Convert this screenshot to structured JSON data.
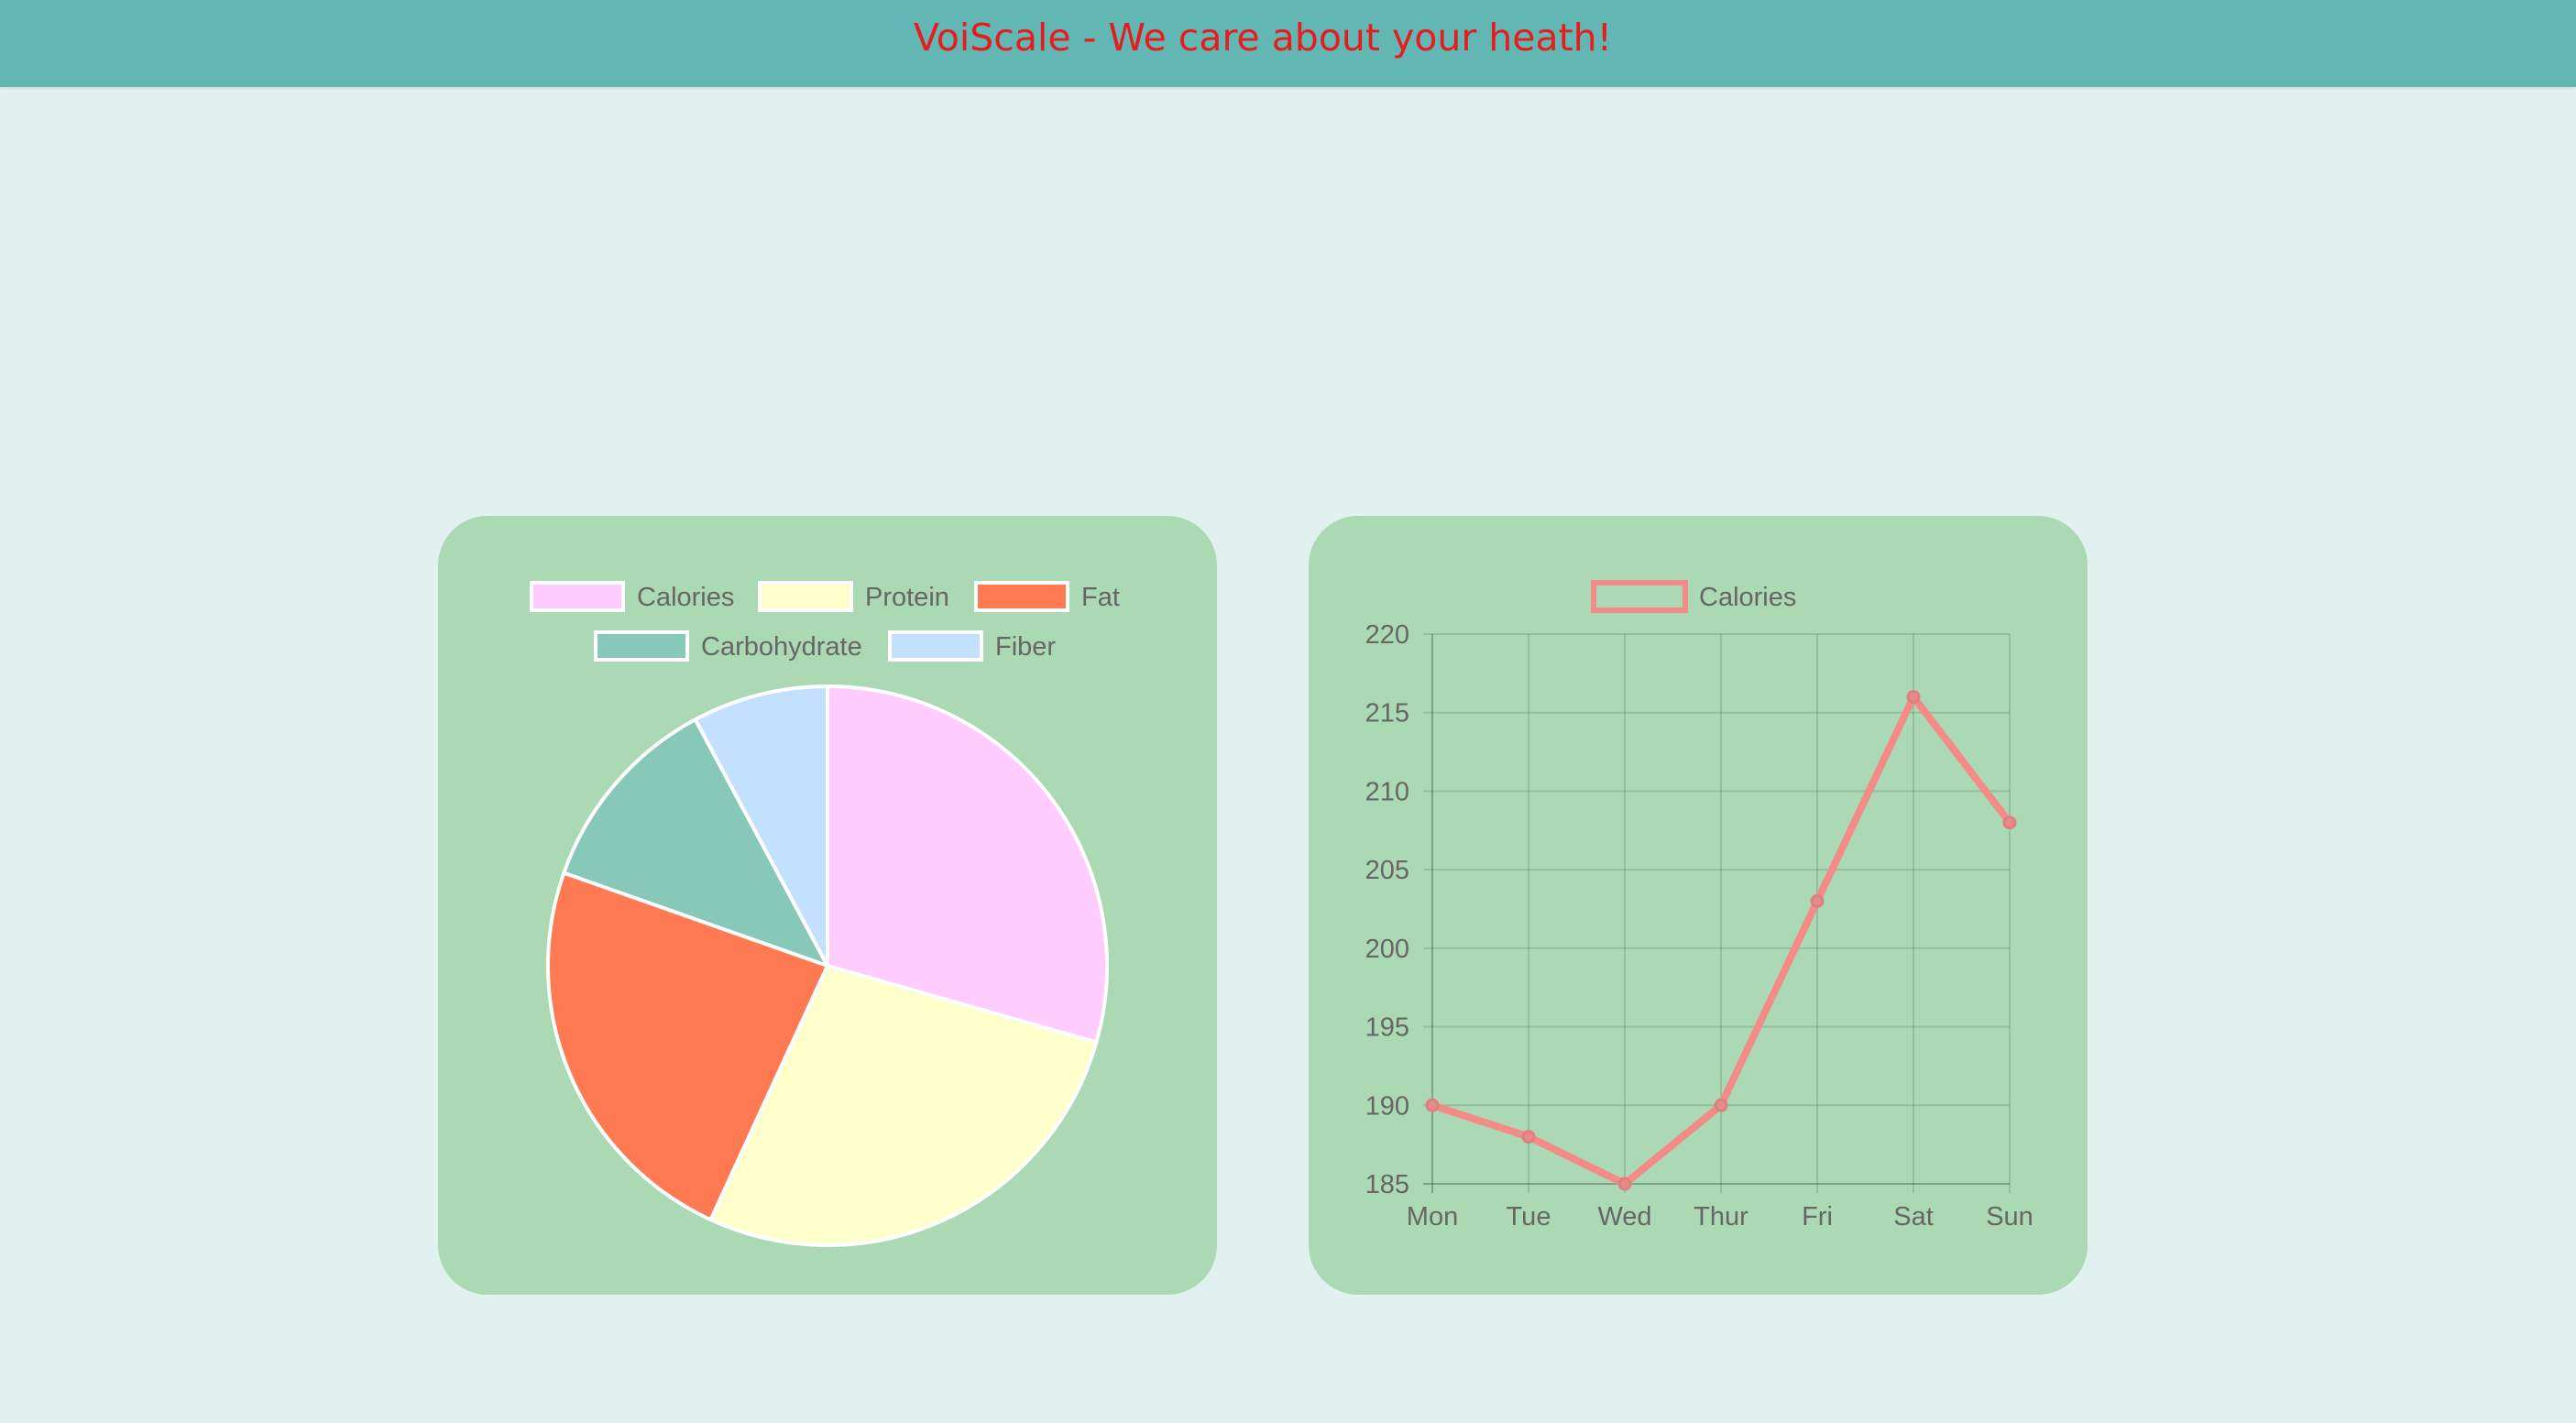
{
  "header": {
    "title": "VoiScale - We care about your heath!"
  },
  "colors": {
    "header_bg": "#62b6b4",
    "title_text": "#e51d1d",
    "card_bg": "#aad9b3",
    "page_bg": "#e1f1f0"
  },
  "chart_data": [
    {
      "type": "pie",
      "categories": [
        "Calories",
        "Protein",
        "Fat",
        "Carbohydrate",
        "Fiber"
      ],
      "values": [
        30,
        28,
        24,
        12,
        8
      ],
      "colors": [
        "#ffccfe",
        "#ffffcc",
        "#ff7a52",
        "#88c8b9",
        "#c3e0fe"
      ],
      "legend_position": "top"
    },
    {
      "type": "line",
      "categories": [
        "Mon",
        "Tue",
        "Wed",
        "Thur",
        "Fri",
        "Sat",
        "Sun"
      ],
      "series": [
        {
          "name": "Calories",
          "values": [
            190,
            188,
            185,
            190,
            203,
            216,
            208
          ],
          "color": "#f48b89"
        }
      ],
      "ylim": [
        185,
        220
      ],
      "yticks": [
        185,
        190,
        195,
        200,
        205,
        210,
        215,
        220
      ],
      "grid": true,
      "legend_position": "top"
    }
  ]
}
